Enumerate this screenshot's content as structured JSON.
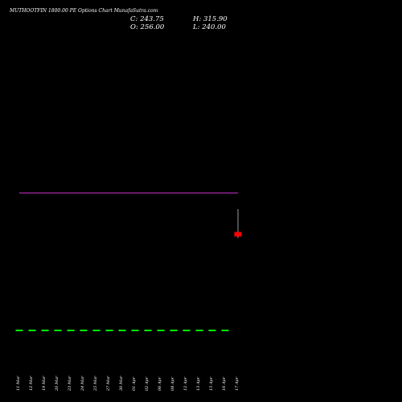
{
  "header": {
    "title": "MUTHOOTFIN 1800.00 PE Options Chart MunafaSutra.com",
    "close_label": "C: 243.75",
    "open_label": "O: 256.00",
    "high_label": "H: 315.90",
    "low_label": "L: 240.00"
  },
  "colors": {
    "background": "#000000",
    "up_candle": "#00ff00",
    "down_candle": "#ff0000",
    "upper_line": "#00ff00",
    "lower_line": "#aa00aa",
    "wick": "#999999",
    "text": "#ffffff"
  },
  "chart_data": {
    "type": "candlestick",
    "x": [
      "11 Mar",
      "12 Mar",
      "19 Mar",
      "20 Mar",
      "23 Mar",
      "24 Mar",
      "25 Mar",
      "27 Mar",
      "30 Mar",
      "01 Apr",
      "02 Apr",
      "06 Apr",
      "08 Apr",
      "12 Apr",
      "13 Apr",
      "15 Apr",
      "16 Apr",
      "17 Apr"
    ],
    "candles": [
      {
        "open": 0.0,
        "high": 0.0,
        "low": 0.0,
        "close": 0.0
      },
      {
        "open": 0.0,
        "high": 0.0,
        "low": 0.0,
        "close": 0.0
      },
      {
        "open": 0.0,
        "high": 0.0,
        "low": 0.0,
        "close": 0.0
      },
      {
        "open": 0.0,
        "high": 0.0,
        "low": 0.0,
        "close": 0.0
      },
      {
        "open": 0.0,
        "high": 0.0,
        "low": 0.0,
        "close": 0.0
      },
      {
        "open": 0.0,
        "high": 0.0,
        "low": 0.0,
        "close": 0.0
      },
      {
        "open": 0.0,
        "high": 0.0,
        "low": 0.0,
        "close": 0.0
      },
      {
        "open": 0.0,
        "high": 0.0,
        "low": 0.0,
        "close": 0.0
      },
      {
        "open": 0.0,
        "high": 0.0,
        "low": 0.0,
        "close": 0.0
      },
      {
        "open": 0.0,
        "high": 0.0,
        "low": 0.0,
        "close": 0.0
      },
      {
        "open": 0.0,
        "high": 0.0,
        "low": 0.0,
        "close": 0.0
      },
      {
        "open": 0.0,
        "high": 0.0,
        "low": 0.0,
        "close": 0.0
      },
      {
        "open": 0.0,
        "high": 0.0,
        "low": 0.0,
        "close": 0.0
      },
      {
        "open": 0.0,
        "high": 0.0,
        "low": 0.0,
        "close": 0.0
      },
      {
        "open": 0.0,
        "high": 0.0,
        "low": 0.0,
        "close": 0.0
      },
      {
        "open": 0.0,
        "high": 0.0,
        "low": 0.0,
        "close": 0.0
      },
      {
        "open": 0.0,
        "high": 0.0,
        "low": 0.0,
        "close": 0.0
      },
      {
        "open": 256.0,
        "high": 315.9,
        "low": 240.0,
        "close": 243.75
      }
    ],
    "upper_line": [
      0.0,
      0.0,
      0.0,
      0.0,
      0.0,
      0.0,
      0.0,
      0.0,
      0.0,
      0.0,
      0.0,
      0.0,
      0.0,
      0.0,
      0.0,
      0.0,
      0.0,
      0.0
    ],
    "lower_line": [
      0.0,
      0.0,
      0.0,
      0.0,
      0.0,
      0.0,
      0.0,
      0.0,
      0.0,
      0.0,
      0.0,
      0.0,
      0.0,
      0.0,
      0.0,
      0.0,
      0.0,
      0.0
    ],
    "grid": false
  }
}
